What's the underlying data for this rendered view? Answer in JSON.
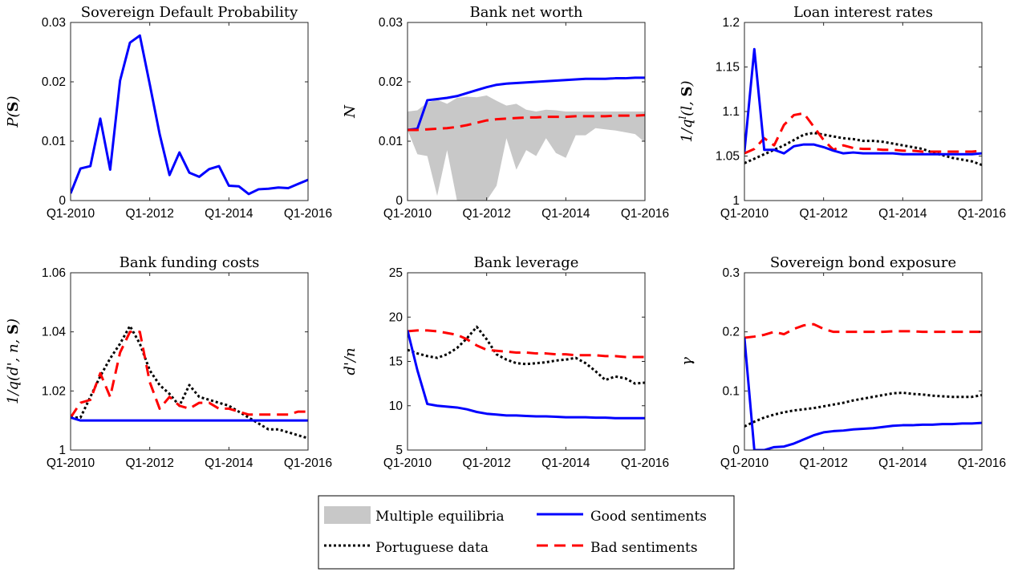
{
  "time_labels": [
    "Q1-2010",
    "Q1-2012",
    "Q1-2014",
    "Q1-2016"
  ],
  "colors": {
    "good": "#0000ff",
    "bad": "#ff0000",
    "data": "#000000",
    "band": "#c8c8c8"
  },
  "legend": {
    "band": "Multiple equilibria",
    "good": "Good sentiments",
    "data": "Portuguese data",
    "bad": "Bad sentiments"
  },
  "chart_data": [
    {
      "type": "line",
      "title": "Sovereign Default Probability",
      "ylabel": "P(S)",
      "ylim": [
        0,
        0.03
      ],
      "yticks": [
        "0",
        "0.01",
        "0.02",
        "0.03"
      ],
      "series": [
        {
          "key": "good",
          "name": "Good sentiments",
          "x": [
            0,
            0.25,
            0.5,
            0.75,
            1,
            1.25,
            1.5,
            1.75,
            2,
            2.25,
            2.5,
            2.75,
            3,
            3.25,
            3.5,
            3.75,
            4,
            4.25,
            4.5,
            4.75,
            5,
            5.25,
            5.5,
            5.75,
            6
          ],
          "values": [
            0.0012,
            0.0054,
            0.0058,
            0.0138,
            0.0052,
            0.0202,
            0.0266,
            0.0278,
            0.0196,
            0.0112,
            0.0043,
            0.0081,
            0.0047,
            0.004,
            0.0053,
            0.0058,
            0.0025,
            0.0024,
            0.0011,
            0.0019,
            0.002,
            0.0022,
            0.0021,
            0.0028,
            0.0035
          ]
        }
      ]
    },
    {
      "type": "line",
      "title": "Bank net worth",
      "ylabel": "N",
      "ylim": [
        0,
        0.03
      ],
      "yticks": [
        "0",
        "0.01",
        "0.02",
        "0.03"
      ],
      "band": {
        "x": [
          0,
          0.25,
          0.5,
          0.75,
          1,
          1.25,
          1.5,
          1.75,
          2,
          2.25,
          2.5,
          2.75,
          3,
          3.25,
          3.5,
          3.75,
          4,
          4.25,
          4.5,
          4.75,
          5,
          5.25,
          5.5,
          5.75,
          6
        ],
        "upper": [
          0.015,
          0.0152,
          0.0165,
          0.017,
          0.0163,
          0.0173,
          0.0175,
          0.0174,
          0.0177,
          0.0168,
          0.016,
          0.0163,
          0.0153,
          0.015,
          0.0153,
          0.0152,
          0.015,
          0.015,
          0.015,
          0.015,
          0.015,
          0.015,
          0.015,
          0.015,
          0.015
        ],
        "lower": [
          0.0119,
          0.0078,
          0.0075,
          0.0008,
          0.0085,
          0.0,
          0.0,
          0.0,
          0.0,
          0.0025,
          0.0105,
          0.0052,
          0.0085,
          0.0075,
          0.0105,
          0.008,
          0.0072,
          0.011,
          0.011,
          0.0122,
          0.012,
          0.0118,
          0.0115,
          0.0112,
          0.0098
        ]
      },
      "series": [
        {
          "key": "good",
          "name": "Good sentiments",
          "x": [
            0,
            0.25,
            0.5,
            0.75,
            1,
            1.25,
            1.5,
            1.75,
            2,
            2.25,
            2.5,
            2.75,
            3,
            3.25,
            3.5,
            3.75,
            4,
            4.25,
            4.5,
            4.75,
            5,
            5.25,
            5.5,
            5.75,
            6
          ],
          "values": [
            0.0119,
            0.0121,
            0.0169,
            0.0171,
            0.0173,
            0.0176,
            0.0181,
            0.0186,
            0.0191,
            0.0195,
            0.0197,
            0.0198,
            0.0199,
            0.02,
            0.0201,
            0.0202,
            0.0203,
            0.0204,
            0.0205,
            0.0205,
            0.0205,
            0.0206,
            0.0206,
            0.0207,
            0.0207
          ]
        },
        {
          "key": "bad",
          "name": "Bad sentiments",
          "x": [
            0,
            0.25,
            0.5,
            0.75,
            1,
            1.25,
            1.5,
            1.75,
            2,
            2.25,
            2.5,
            2.75,
            3,
            3.25,
            3.5,
            3.75,
            4,
            4.25,
            4.5,
            4.75,
            5,
            5.25,
            5.5,
            5.75,
            6
          ],
          "values": [
            0.0119,
            0.0119,
            0.012,
            0.0121,
            0.0122,
            0.0124,
            0.0127,
            0.0131,
            0.0135,
            0.0137,
            0.0138,
            0.0139,
            0.014,
            0.014,
            0.0141,
            0.0141,
            0.0141,
            0.0142,
            0.0142,
            0.0142,
            0.0142,
            0.0143,
            0.0143,
            0.0143,
            0.0144
          ]
        }
      ]
    },
    {
      "type": "line",
      "title": "Loan interest rates",
      "ylabel": "1/q^l(l, S)",
      "ylim": [
        1,
        1.2
      ],
      "yticks": [
        "1",
        "1.05",
        "1.1",
        "1.15",
        "1.2"
      ],
      "series": [
        {
          "key": "data",
          "name": "Portuguese data",
          "x": [
            0,
            0.25,
            0.5,
            0.75,
            1,
            1.25,
            1.5,
            1.75,
            2,
            2.25,
            2.5,
            2.75,
            3,
            3.25,
            3.5,
            3.75,
            4,
            4.25,
            4.5,
            4.75,
            5,
            5.25,
            5.5,
            5.75,
            6
          ],
          "values": [
            1.042,
            1.047,
            1.052,
            1.057,
            1.062,
            1.068,
            1.074,
            1.076,
            1.074,
            1.072,
            1.07,
            1.069,
            1.067,
            1.067,
            1.066,
            1.064,
            1.062,
            1.06,
            1.058,
            1.054,
            1.051,
            1.048,
            1.046,
            1.044,
            1.04
          ]
        },
        {
          "key": "bad",
          "name": "Bad sentiments",
          "x": [
            0,
            0.25,
            0.5,
            0.75,
            1,
            1.25,
            1.5,
            1.75,
            2,
            2.25,
            2.5,
            2.75,
            3,
            3.25,
            3.5,
            3.75,
            4,
            4.25,
            4.5,
            4.75,
            5,
            5.25,
            5.5,
            5.75,
            6
          ],
          "values": [
            1.053,
            1.058,
            1.07,
            1.062,
            1.085,
            1.096,
            1.098,
            1.083,
            1.068,
            1.057,
            1.062,
            1.059,
            1.058,
            1.058,
            1.057,
            1.057,
            1.056,
            1.056,
            1.055,
            1.055,
            1.055,
            1.055,
            1.055,
            1.055,
            1.056
          ]
        },
        {
          "key": "good",
          "name": "Good sentiments",
          "x": [
            0,
            0.25,
            0.5,
            0.75,
            1,
            1.25,
            1.5,
            1.75,
            2,
            2.25,
            2.5,
            2.75,
            3,
            3.25,
            3.5,
            3.75,
            4,
            4.25,
            4.5,
            4.75,
            5,
            5.25,
            5.5,
            5.75,
            6
          ],
          "values": [
            1.055,
            1.17,
            1.057,
            1.057,
            1.053,
            1.061,
            1.063,
            1.063,
            1.06,
            1.056,
            1.053,
            1.054,
            1.053,
            1.053,
            1.053,
            1.053,
            1.052,
            1.052,
            1.052,
            1.052,
            1.052,
            1.052,
            1.052,
            1.052,
            1.053
          ]
        }
      ]
    },
    {
      "type": "line",
      "title": "Bank funding costs",
      "ylabel": "1/q(d', n, S)",
      "ylim": [
        1,
        1.06
      ],
      "yticks": [
        "1",
        "1.02",
        "1.04",
        "1.06"
      ],
      "series": [
        {
          "key": "data",
          "name": "Portuguese data",
          "x": [
            0,
            0.25,
            0.5,
            0.75,
            1,
            1.25,
            1.5,
            1.75,
            2,
            2.25,
            2.5,
            2.75,
            3,
            3.25,
            3.5,
            3.75,
            4,
            4.25,
            4.5,
            4.75,
            5,
            5.25,
            5.5,
            5.75,
            6
          ],
          "values": [
            1.011,
            1.011,
            1.018,
            1.025,
            1.031,
            1.036,
            1.042,
            1.036,
            1.027,
            1.022,
            1.019,
            1.015,
            1.022,
            1.018,
            1.017,
            1.016,
            1.015,
            1.013,
            1.011,
            1.009,
            1.007,
            1.007,
            1.006,
            1.005,
            1.004
          ]
        },
        {
          "key": "bad",
          "name": "Bad sentiments",
          "x": [
            0,
            0.25,
            0.5,
            0.75,
            1,
            1.25,
            1.5,
            1.75,
            2,
            2.25,
            2.5,
            2.75,
            3,
            3.25,
            3.5,
            3.75,
            4,
            4.25,
            4.5,
            4.75,
            5,
            5.25,
            5.5,
            5.75,
            6
          ],
          "values": [
            1.011,
            1.016,
            1.017,
            1.026,
            1.018,
            1.033,
            1.04,
            1.04,
            1.023,
            1.014,
            1.018,
            1.015,
            1.014,
            1.016,
            1.016,
            1.014,
            1.014,
            1.013,
            1.012,
            1.012,
            1.012,
            1.012,
            1.012,
            1.013,
            1.013
          ]
        },
        {
          "key": "good",
          "name": "Good sentiments",
          "x": [
            0,
            0.25,
            0.5,
            0.75,
            1,
            1.25,
            1.5,
            1.75,
            2,
            2.25,
            2.5,
            2.75,
            3,
            3.25,
            3.5,
            3.75,
            4,
            4.25,
            4.5,
            4.75,
            5,
            5.25,
            5.5,
            5.75,
            6
          ],
          "values": [
            1.011,
            1.01,
            1.01,
            1.01,
            1.01,
            1.01,
            1.01,
            1.01,
            1.01,
            1.01,
            1.01,
            1.01,
            1.01,
            1.01,
            1.01,
            1.01,
            1.01,
            1.01,
            1.01,
            1.01,
            1.01,
            1.01,
            1.01,
            1.01,
            1.01
          ]
        }
      ]
    },
    {
      "type": "line",
      "title": "Bank leverage",
      "ylabel": "d'/n",
      "ylim": [
        5,
        25
      ],
      "yticks": [
        "5",
        "10",
        "15",
        "20",
        "25"
      ],
      "series": [
        {
          "key": "data",
          "name": "Portuguese data",
          "x": [
            0,
            0.25,
            0.5,
            0.75,
            1,
            1.25,
            1.5,
            1.75,
            2,
            2.25,
            2.5,
            2.75,
            3,
            3.25,
            3.5,
            3.75,
            4,
            4.25,
            4.5,
            4.75,
            5,
            5.25,
            5.5,
            5.75,
            6
          ],
          "values": [
            16.3,
            15.9,
            15.6,
            15.4,
            15.8,
            16.5,
            17.6,
            18.9,
            17.5,
            15.8,
            15.2,
            14.8,
            14.7,
            14.8,
            14.9,
            15.1,
            15.2,
            15.4,
            14.8,
            13.9,
            12.9,
            13.3,
            13.1,
            12.5,
            12.6
          ]
        },
        {
          "key": "bad",
          "name": "Bad sentiments",
          "x": [
            0,
            0.25,
            0.5,
            0.75,
            1,
            1.25,
            1.5,
            1.75,
            2,
            2.25,
            2.5,
            2.75,
            3,
            3.25,
            3.5,
            3.75,
            4,
            4.25,
            4.5,
            4.75,
            5,
            5.25,
            5.5,
            5.75,
            6
          ],
          "values": [
            18.4,
            18.5,
            18.5,
            18.4,
            18.2,
            18.0,
            17.5,
            16.8,
            16.3,
            16.2,
            16.1,
            16.0,
            16.0,
            15.9,
            15.9,
            15.8,
            15.8,
            15.7,
            15.7,
            15.7,
            15.6,
            15.6,
            15.5,
            15.5,
            15.5
          ]
        },
        {
          "key": "good",
          "name": "Good sentiments",
          "x": [
            0,
            0.25,
            0.5,
            0.75,
            1,
            1.25,
            1.5,
            1.75,
            2,
            2.25,
            2.5,
            2.75,
            3,
            3.25,
            3.5,
            3.75,
            4,
            4.25,
            4.5,
            4.75,
            5,
            5.25,
            5.5,
            5.75,
            6
          ],
          "values": [
            18.5,
            14.0,
            10.2,
            10.0,
            9.9,
            9.8,
            9.6,
            9.3,
            9.1,
            9.0,
            8.9,
            8.9,
            8.85,
            8.8,
            8.8,
            8.75,
            8.7,
            8.7,
            8.7,
            8.65,
            8.65,
            8.6,
            8.6,
            8.6,
            8.6
          ]
        }
      ]
    },
    {
      "type": "line",
      "title": "Sovereign bond exposure",
      "ylabel": "γ",
      "ylim": [
        0,
        0.3
      ],
      "yticks": [
        "0",
        "0.1",
        "0.2",
        "0.3"
      ],
      "series": [
        {
          "key": "data",
          "name": "Portuguese data",
          "x": [
            0,
            0.25,
            0.5,
            0.75,
            1,
            1.25,
            1.5,
            1.75,
            2,
            2.25,
            2.5,
            2.75,
            3,
            3.25,
            3.5,
            3.75,
            4,
            4.25,
            4.5,
            4.75,
            5,
            5.25,
            5.5,
            5.75,
            6
          ],
          "values": [
            0.04,
            0.048,
            0.055,
            0.06,
            0.064,
            0.067,
            0.069,
            0.071,
            0.074,
            0.077,
            0.08,
            0.084,
            0.087,
            0.09,
            0.093,
            0.096,
            0.097,
            0.095,
            0.094,
            0.092,
            0.091,
            0.09,
            0.09,
            0.09,
            0.093
          ]
        },
        {
          "key": "bad",
          "name": "Bad sentiments",
          "x": [
            0,
            0.25,
            0.5,
            0.75,
            1,
            1.25,
            1.5,
            1.75,
            2,
            2.25,
            2.5,
            2.75,
            3,
            3.25,
            3.5,
            3.75,
            4,
            4.25,
            4.5,
            4.75,
            5,
            5.25,
            5.5,
            5.75,
            6
          ],
          "values": [
            0.19,
            0.192,
            0.195,
            0.2,
            0.196,
            0.205,
            0.211,
            0.213,
            0.205,
            0.2,
            0.2,
            0.2,
            0.2,
            0.2,
            0.2,
            0.201,
            0.201,
            0.201,
            0.2,
            0.2,
            0.2,
            0.2,
            0.2,
            0.2,
            0.2
          ]
        },
        {
          "key": "good",
          "name": "Good sentiments",
          "x": [
            0,
            0.25,
            0.5,
            0.75,
            1,
            1.25,
            1.5,
            1.75,
            2,
            2.25,
            2.5,
            2.75,
            3,
            3.25,
            3.5,
            3.75,
            4,
            4.25,
            4.5,
            4.75,
            5,
            5.25,
            5.5,
            5.75,
            6
          ],
          "values": [
            0.19,
            0.0,
            0.0,
            0.005,
            0.006,
            0.011,
            0.018,
            0.025,
            0.03,
            0.032,
            0.033,
            0.035,
            0.036,
            0.037,
            0.039,
            0.041,
            0.042,
            0.042,
            0.043,
            0.043,
            0.044,
            0.044,
            0.045,
            0.045,
            0.046
          ]
        }
      ]
    }
  ]
}
